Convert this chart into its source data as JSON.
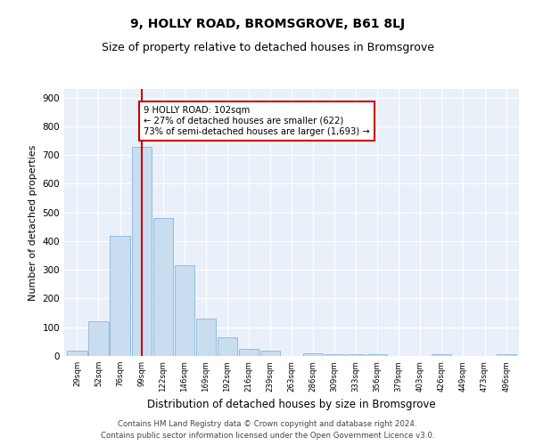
{
  "title": "9, HOLLY ROAD, BROMSGROVE, B61 8LJ",
  "subtitle": "Size of property relative to detached houses in Bromsgrove",
  "xlabel": "Distribution of detached houses by size in Bromsgrove",
  "ylabel": "Number of detached properties",
  "footer_line1": "Contains HM Land Registry data © Crown copyright and database right 2024.",
  "footer_line2": "Contains public sector information licensed under the Open Government Licence v3.0.",
  "bin_labels": [
    "29sqm",
    "52sqm",
    "76sqm",
    "99sqm",
    "122sqm",
    "146sqm",
    "169sqm",
    "192sqm",
    "216sqm",
    "239sqm",
    "263sqm",
    "286sqm",
    "309sqm",
    "333sqm",
    "356sqm",
    "379sqm",
    "403sqm",
    "426sqm",
    "449sqm",
    "473sqm",
    "496sqm"
  ],
  "bar_values": [
    18,
    120,
    420,
    730,
    480,
    315,
    130,
    65,
    25,
    20,
    0,
    10,
    5,
    5,
    5,
    0,
    0,
    5,
    0,
    0,
    5
  ],
  "bar_color": "#c9ddf0",
  "bar_edge_color": "#8cb4d8",
  "ylim": [
    0,
    930
  ],
  "yticks": [
    0,
    100,
    200,
    300,
    400,
    500,
    600,
    700,
    800,
    900
  ],
  "vline_x": 3,
  "vline_color": "#cc0000",
  "annotation_text": "9 HOLLY ROAD: 102sqm\n← 27% of detached houses are smaller (622)\n73% of semi-detached houses are larger (1,693) →",
  "annotation_box_color": "#ffffff",
  "annotation_box_edge_color": "#cc0000",
  "background_color": "#ffffff",
  "plot_bg_color": "#eaf0fa",
  "grid_color": "#ffffff",
  "title_fontsize": 10,
  "subtitle_fontsize": 9,
  "xlabel_fontsize": 8.5,
  "ylabel_fontsize": 8
}
